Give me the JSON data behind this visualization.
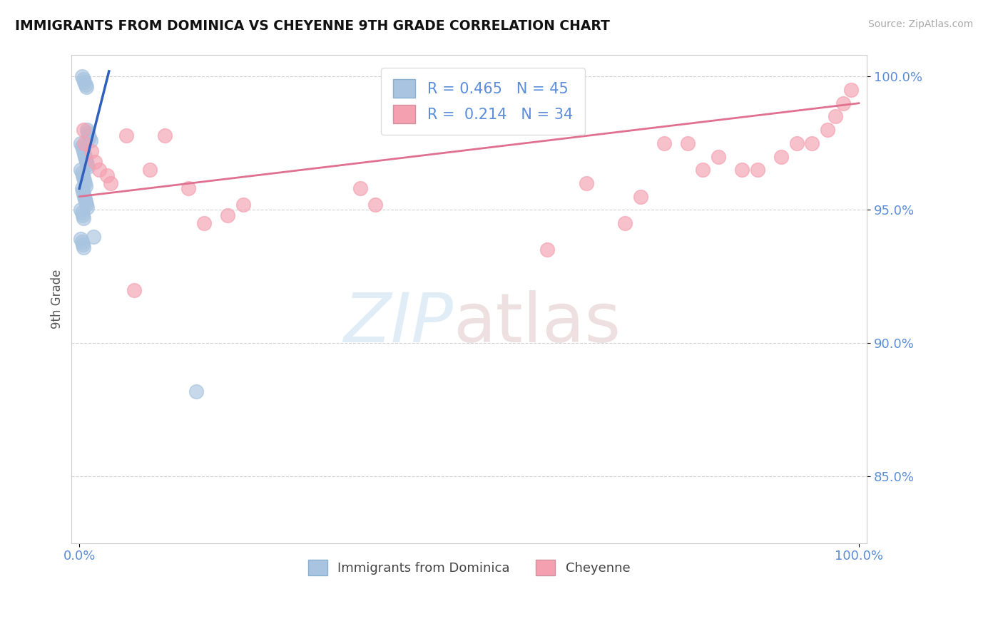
{
  "title": "IMMIGRANTS FROM DOMINICA VS CHEYENNE 9TH GRADE CORRELATION CHART",
  "source": "Source: ZipAtlas.com",
  "ylabel": "9th Grade",
  "legend_series": [
    {
      "label": "Immigrants from Dominica",
      "color": "#a8c4e0",
      "R": 0.465,
      "N": 45
    },
    {
      "label": "Cheyenne",
      "color": "#f4a0b0",
      "R": 0.214,
      "N": 34
    }
  ],
  "scatter_blue_color": "#a8c4e0",
  "scatter_pink_color": "#f4a0b0",
  "line_blue_color": "#3060bb",
  "line_pink_color": "#e07090",
  "axis_color": "#5b8dd9",
  "grid_color": "#cccccc",
  "blue_scatter_x": [
    0.003,
    0.005,
    0.006,
    0.008,
    0.009,
    0.01,
    0.011,
    0.012,
    0.013,
    0.014,
    0.002,
    0.003,
    0.004,
    0.005,
    0.006,
    0.007,
    0.008,
    0.009,
    0.01,
    0.011,
    0.002,
    0.003,
    0.004,
    0.005,
    0.006,
    0.007,
    0.008,
    0.003,
    0.004,
    0.005,
    0.006,
    0.007,
    0.008,
    0.009,
    0.01,
    0.002,
    0.003,
    0.004,
    0.005,
    0.018,
    0.002,
    0.003,
    0.004,
    0.005,
    0.15
  ],
  "blue_scatter_y": [
    1.0,
    0.999,
    0.998,
    0.997,
    0.996,
    0.98,
    0.979,
    0.978,
    0.977,
    0.976,
    0.975,
    0.974,
    0.973,
    0.972,
    0.971,
    0.97,
    0.969,
    0.968,
    0.967,
    0.966,
    0.965,
    0.964,
    0.963,
    0.962,
    0.961,
    0.96,
    0.959,
    0.958,
    0.957,
    0.956,
    0.955,
    0.954,
    0.953,
    0.952,
    0.951,
    0.95,
    0.949,
    0.948,
    0.947,
    0.94,
    0.939,
    0.938,
    0.937,
    0.936,
    0.882
  ],
  "pink_scatter_x": [
    0.006,
    0.02,
    0.035,
    0.06,
    0.09,
    0.11,
    0.14,
    0.16,
    0.19,
    0.21,
    0.005,
    0.015,
    0.025,
    0.04,
    0.07,
    0.36,
    0.38,
    0.6,
    0.65,
    0.7,
    0.72,
    0.75,
    0.78,
    0.8,
    0.82,
    0.85,
    0.87,
    0.9,
    0.92,
    0.94,
    0.96,
    0.97,
    0.98,
    0.99
  ],
  "pink_scatter_y": [
    0.975,
    0.968,
    0.963,
    0.978,
    0.965,
    0.978,
    0.958,
    0.945,
    0.948,
    0.952,
    0.98,
    0.972,
    0.965,
    0.96,
    0.92,
    0.958,
    0.952,
    0.935,
    0.96,
    0.945,
    0.955,
    0.975,
    0.975,
    0.965,
    0.97,
    0.965,
    0.965,
    0.97,
    0.975,
    0.975,
    0.98,
    0.985,
    0.99,
    0.995
  ],
  "blue_line_x": [
    0.0,
    0.038
  ],
  "blue_line_y": [
    0.958,
    1.002
  ],
  "pink_line_x": [
    0.0,
    1.0
  ],
  "pink_line_y": [
    0.955,
    0.99
  ],
  "xlim": [
    -0.01,
    1.01
  ],
  "ylim": [
    0.825,
    1.008
  ],
  "yticks": [
    0.85,
    0.9,
    0.95,
    1.0
  ],
  "ytick_labels": [
    "85.0%",
    "90.0%",
    "95.0%",
    "100.0%"
  ],
  "xtick_positions": [
    0.0,
    1.0
  ],
  "xtick_labels": [
    "0.0%",
    "100.0%"
  ]
}
